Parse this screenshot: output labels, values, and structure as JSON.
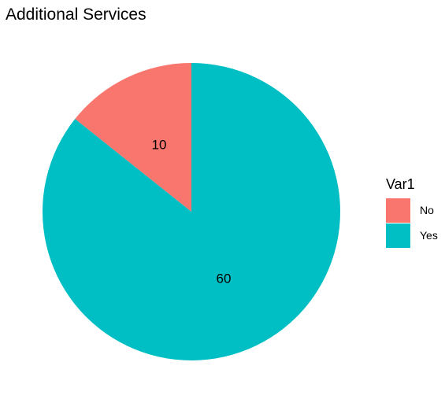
{
  "chart_data": {
    "type": "pie",
    "title": "Additional Services",
    "legend_title": "Var1",
    "legend_position": "right",
    "slices": [
      {
        "label": "No",
        "value": 10,
        "color": "#F8766D"
      },
      {
        "label": "Yes",
        "value": 60,
        "color": "#00BFC4"
      }
    ],
    "start_angle": "12 o'clock",
    "direction": "counterclockwise"
  }
}
